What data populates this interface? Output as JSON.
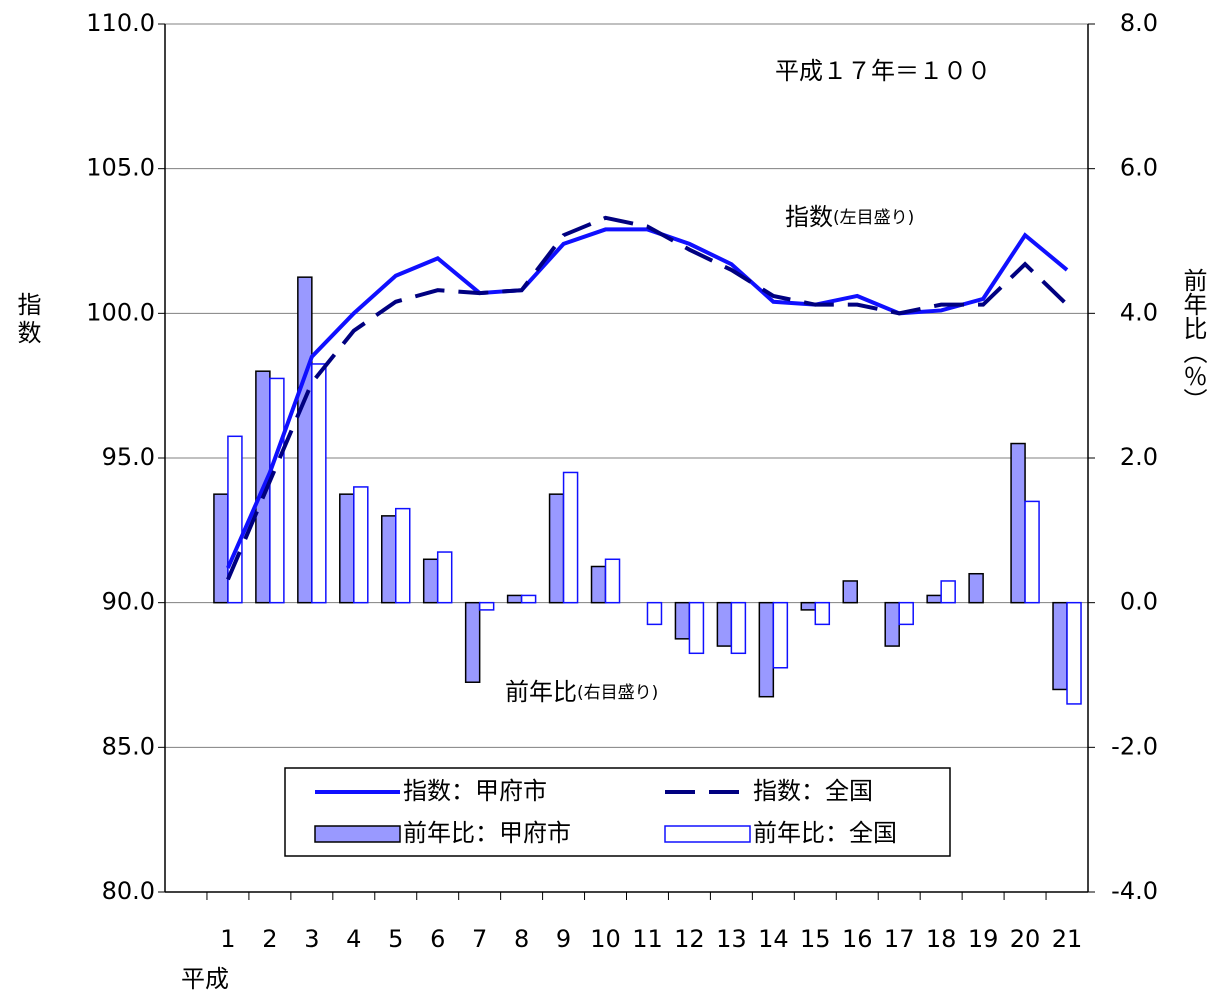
{
  "chart_data": {
    "type": "combo",
    "categories": [
      null,
      "1",
      "2",
      "3",
      "4",
      "5",
      "6",
      "7",
      "8",
      "9",
      "10",
      "11",
      "12",
      "13",
      "14",
      "15",
      "16",
      "17",
      "18",
      "19",
      "20",
      "21"
    ],
    "xlabel": "平成",
    "ylabel": "指数",
    "y2label": "前年比（％）",
    "ylim": [
      80,
      110
    ],
    "yticks": [
      {
        "value": 80,
        "label": "80.0"
      },
      {
        "value": 85,
        "label": "85.0"
      },
      {
        "value": 90,
        "label": "90.0"
      },
      {
        "value": 95,
        "label": "95.0"
      },
      {
        "value": 100,
        "label": "100.0"
      },
      {
        "value": 105,
        "label": "105.0"
      },
      {
        "value": 110,
        "label": "110.0"
      }
    ],
    "y2lim": [
      -4,
      8
    ],
    "y2ticks": [
      {
        "value": -4,
        "label": "-4.0"
      },
      {
        "value": -2,
        "label": "-2.0"
      },
      {
        "value": 0,
        "label": "0.0"
      },
      {
        "value": 2,
        "label": "2.0"
      },
      {
        "value": 4,
        "label": "4.0"
      },
      {
        "value": 6,
        "label": "6.0"
      },
      {
        "value": 8,
        "label": "8.0"
      }
    ],
    "grid": true,
    "legend": "lower center",
    "annotations": [
      "平成１７年＝１００",
      "指数",
      "(左目盛り)",
      "前年比",
      "(右目盛り)"
    ],
    "series": [
      {
        "name": "指数：甲府市",
        "type": "line",
        "color": "#1010ff",
        "line_style": "solid",
        "values": [
          null,
          91.2,
          94.5,
          98.5,
          100.0,
          101.3,
          101.9,
          100.7,
          100.8,
          102.4,
          102.9,
          102.9,
          102.4,
          101.7,
          100.4,
          100.3,
          100.6,
          100.0,
          100.1,
          100.5,
          102.7,
          101.5
        ]
      },
      {
        "name": "指数：全国",
        "type": "line",
        "color": "#000080",
        "line_style": "dashed",
        "values": [
          null,
          90.8,
          94.2,
          97.6,
          99.4,
          100.4,
          100.8,
          100.7,
          100.8,
          102.7,
          103.3,
          103.0,
          102.2,
          101.5,
          100.6,
          100.3,
          100.3,
          100.0,
          100.3,
          100.3,
          101.7,
          100.3
        ]
      },
      {
        "name": "前年比：甲府市",
        "type": "bar",
        "axis": "y2",
        "color": "#9999ff",
        "edgecolor": "#000000",
        "values": [
          null,
          1.5,
          3.2,
          4.5,
          1.5,
          1.2,
          0.6,
          -1.1,
          0.1,
          1.5,
          0.5,
          0.0,
          -0.5,
          -0.6,
          -1.3,
          -0.1,
          0.3,
          -0.6,
          0.1,
          0.4,
          2.2,
          -1.2
        ]
      },
      {
        "name": "前年比：全国",
        "type": "bar",
        "axis": "y2",
        "color": "#ffffff",
        "edgecolor": "#1010ff",
        "values": [
          null,
          2.3,
          3.1,
          3.3,
          1.6,
          1.3,
          0.7,
          -0.1,
          0.1,
          1.8,
          0.6,
          -0.3,
          -0.7,
          -0.7,
          -0.9,
          -0.3,
          0.0,
          -0.3,
          0.3,
          0.0,
          1.4,
          -1.4
        ]
      }
    ]
  }
}
